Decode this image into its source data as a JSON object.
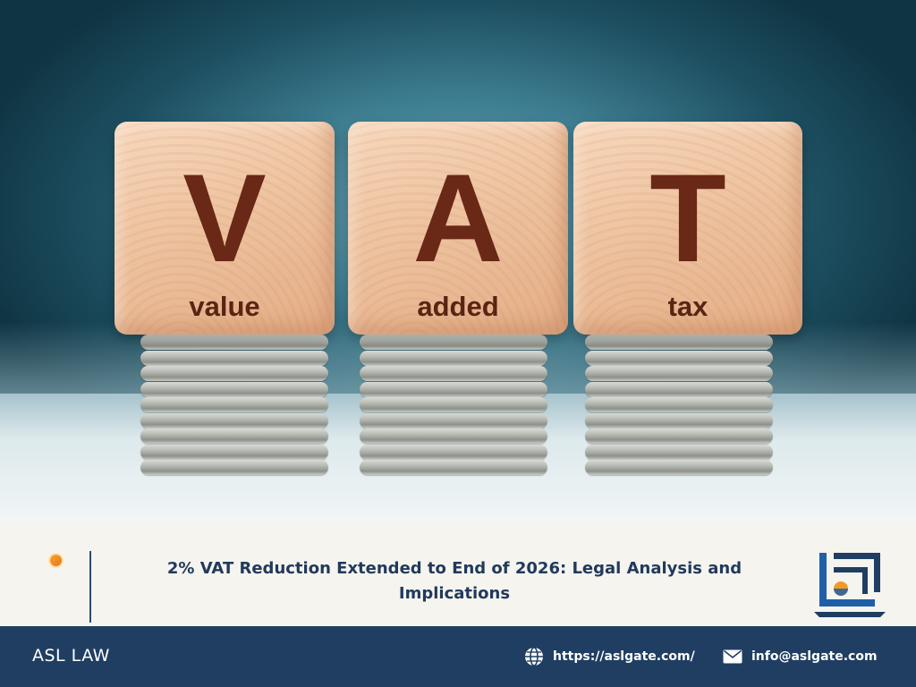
{
  "hero": {
    "blocks": [
      {
        "letter": "V",
        "word": "value"
      },
      {
        "letter": "A",
        "word": "added"
      },
      {
        "letter": "T",
        "word": "tax"
      }
    ]
  },
  "article": {
    "title_line1": "2% VAT Reduction Extended to End of 2026: Legal Analysis and",
    "title_line2": "Implications"
  },
  "footer": {
    "brand": "ASL LAW",
    "website": "https://aslgate.com/",
    "email": "info@aslgate.com",
    "website_icon": "globe-icon",
    "email_icon": "envelope-icon"
  },
  "colors": {
    "navy": "#1f3e62",
    "accent_orange": "#f39a25",
    "title_text": "#213a5c",
    "band_background": "#f6f4ef"
  }
}
